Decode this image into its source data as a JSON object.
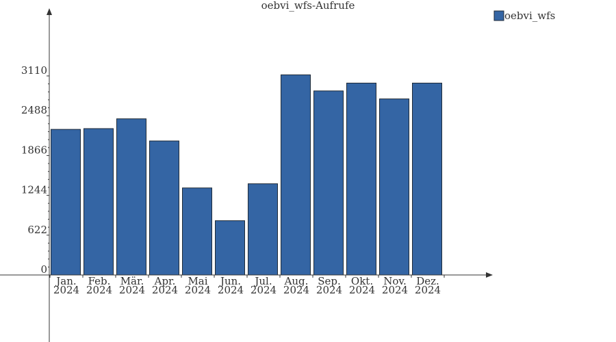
{
  "chart_data": {
    "type": "bar",
    "title": "oebvi_wfs-Aufrufe",
    "categories": [
      [
        "Jan.",
        "2024"
      ],
      [
        "Feb.",
        "2024"
      ],
      [
        "Mär.",
        "2024"
      ],
      [
        "Apr.",
        "2024"
      ],
      [
        "Mai",
        "2024"
      ],
      [
        "Jun.",
        "2024"
      ],
      [
        "Jul.",
        "2024"
      ],
      [
        "Aug.",
        "2024"
      ],
      [
        "Sep.",
        "2024"
      ],
      [
        "Okt.",
        "2024"
      ],
      [
        "Nov.",
        "2024"
      ],
      [
        "Dez.",
        "2024"
      ]
    ],
    "series": [
      {
        "name": "oebvi_wfs",
        "color": "#3465a4",
        "values": [
          2275,
          2287,
          2440,
          2094,
          1360,
          848,
          1425,
          3127,
          2876,
          2998,
          2751,
          2998
        ]
      }
    ],
    "yticks": [
      "0",
      "622",
      "1244",
      "1866",
      "2488",
      "3110"
    ],
    "ylim": [
      0,
      3110
    ],
    "grid": false,
    "legend_position": "top-right"
  }
}
